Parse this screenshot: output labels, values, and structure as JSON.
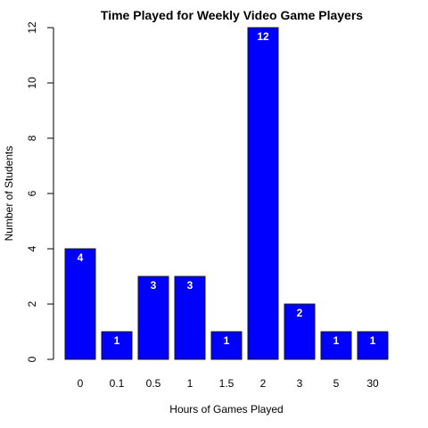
{
  "chart_data": {
    "type": "bar",
    "title": "Time Played for Weekly Video Game Players",
    "xlabel": "Hours of Games Played",
    "ylabel": "Number of Students",
    "categories": [
      "0",
      "0.1",
      "0.5",
      "1",
      "1.5",
      "2",
      "3",
      "5",
      "30"
    ],
    "values": [
      4,
      1,
      3,
      3,
      1,
      12,
      2,
      1,
      1
    ],
    "data_labels": [
      "4",
      "1",
      "3",
      "3",
      "1",
      "12",
      "2",
      "1",
      "1"
    ],
    "ylim": [
      0,
      12
    ],
    "yticks": [
      0,
      2,
      4,
      6,
      8,
      10,
      12
    ],
    "ytick_labels": [
      "0",
      "2",
      "4",
      "6",
      "8",
      "10",
      "12"
    ],
    "grid": false,
    "bar_color": "#0000ff"
  }
}
